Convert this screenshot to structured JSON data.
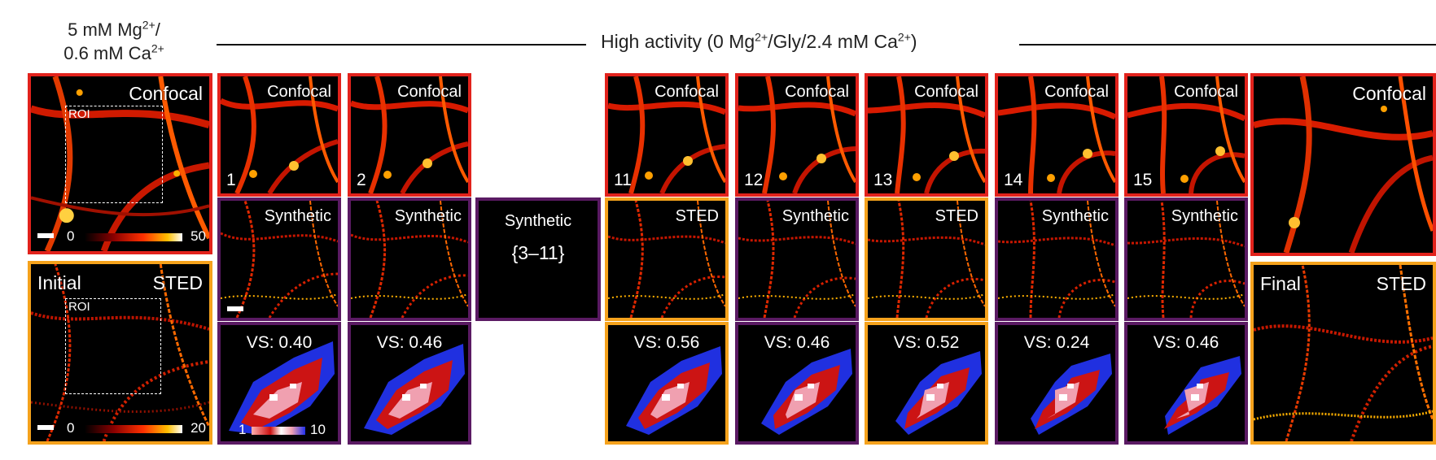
{
  "header_left": {
    "line1_pre": "5 mM Mg",
    "line1_sup": "2+",
    "line1_post": "/",
    "line2_pre": "0.6 mM Ca",
    "line2_sup": "2+"
  },
  "header_main": {
    "pre": "High activity (0 Mg",
    "sup1": "2+",
    "mid": "/Gly/2.4 mM Ca",
    "sup2": "2+",
    "post": ")"
  },
  "labels": {
    "confocal": "Confocal",
    "synthetic": "Synthetic",
    "sted": "STED",
    "initial": "Initial",
    "final": "Final",
    "roi": "ROI"
  },
  "colorbars": {
    "confocal_min": "0",
    "confocal_max": "50",
    "sted_min": "0",
    "sted_max": "20",
    "vs_min": "1",
    "vs_max": "10"
  },
  "colors": {
    "red_frame": "#e2221c",
    "orange_frame": "#f5a21c",
    "purple_frame": "#5a1a63"
  },
  "middle_box": {
    "title": "Synthetic",
    "range": "{3–11}"
  },
  "columns": [
    {
      "index": "1",
      "bottom_label": "Synthetic",
      "vs": "VS: 0.40"
    },
    {
      "index": "2",
      "bottom_label": "Synthetic",
      "vs": "VS: 0.46"
    },
    {
      "index": "11",
      "bottom_label": "STED",
      "vs": "VS: 0.56"
    },
    {
      "index": "12",
      "bottom_label": "Synthetic",
      "vs": "VS: 0.46"
    },
    {
      "index": "13",
      "bottom_label": "STED",
      "vs": "VS: 0.52"
    },
    {
      "index": "14",
      "bottom_label": "Synthetic",
      "vs": "VS: 0.24"
    },
    {
      "index": "15",
      "bottom_label": "Synthetic",
      "vs": "VS: 0.46"
    }
  ]
}
